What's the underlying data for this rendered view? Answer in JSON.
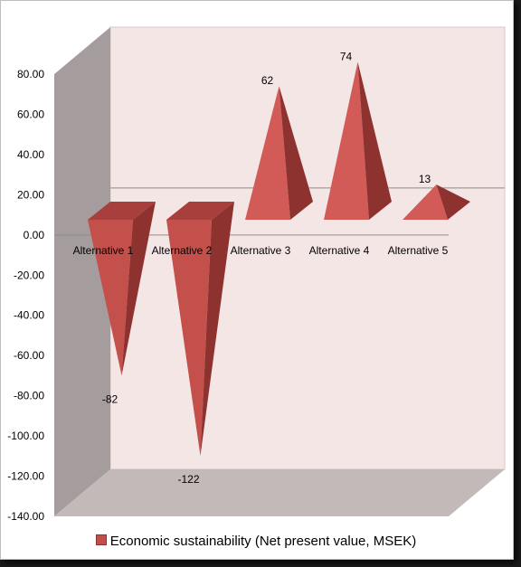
{
  "chart_data": {
    "type": "bar",
    "bar_shape": "pyramid-3d",
    "categories": [
      "Alternative 1",
      "Alternative 2",
      "Alternative 3",
      "Alternative 4",
      "Alternative 5"
    ],
    "series": [
      {
        "name": "Economic sustainability (Net present value, MSEK)",
        "values": [
          -82,
          -122,
          62,
          74,
          13
        ],
        "data_labels": [
          "-82",
          "-122",
          "62",
          "74",
          "13"
        ],
        "color": "#c0504d"
      }
    ],
    "ylim": [
      -140,
      80
    ],
    "y_ticks": [
      "80.00",
      "60.00",
      "40.00",
      "20.00",
      "0.00",
      "-20.00",
      "-40.00",
      "-60.00",
      "-80.00",
      "-100.00",
      "-120.00",
      "-140.00"
    ],
    "legend_position": "bottom",
    "colors": {
      "back_wall": "#f5e6e6",
      "side_wall": "#a59d9d",
      "floor": "#c4b9b9",
      "bar": "#c0504d"
    }
  }
}
